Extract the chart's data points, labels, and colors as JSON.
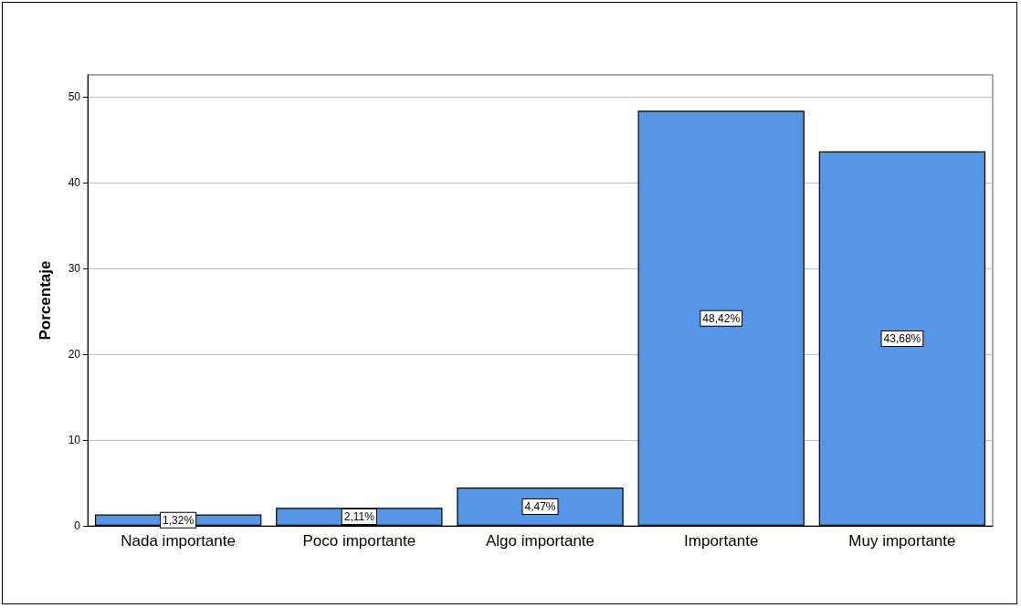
{
  "chart_data": {
    "type": "bar",
    "ylabel": "Porcentaje",
    "categories": [
      "Nada importante",
      "Poco importante",
      "Algo importante",
      "Importante",
      "Muy importante"
    ],
    "values": [
      1.32,
      2.11,
      4.47,
      48.42,
      43.68
    ],
    "value_labels": [
      "1,32%",
      "2,11%",
      "4,47%",
      "48,42%",
      "43,68%"
    ],
    "color": "#5596e6",
    "ylim": [
      0,
      52.6
    ],
    "yticks": [
      0,
      10,
      20,
      30,
      40,
      50
    ],
    "grid": "y"
  }
}
